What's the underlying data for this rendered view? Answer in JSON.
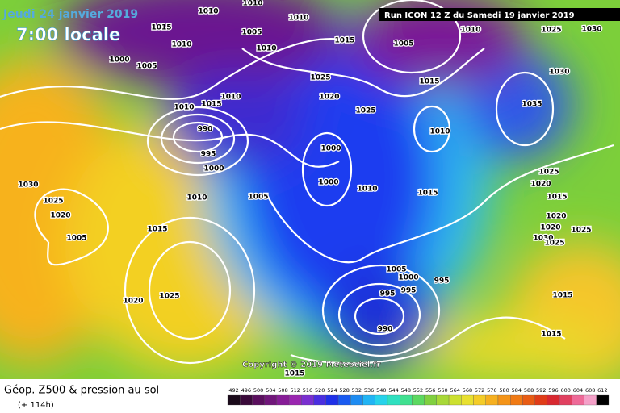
{
  "header": {
    "date": "Jeudi 24 janvier 2019",
    "time": "7:00 locale",
    "run": "Run ICON 12 Z du Samedi 19 janvier 2019"
  },
  "copyright": "Copyright © 2019 Meteociel.fr",
  "footer": {
    "title": "Géop. Z500 & pression au sol",
    "lead": "(+ 114h)"
  },
  "colorbar": {
    "labels": [
      492,
      496,
      500,
      504,
      508,
      512,
      516,
      520,
      524,
      528,
      532,
      536,
      540,
      544,
      548,
      552,
      556,
      560,
      564,
      568,
      572,
      576,
      580,
      584,
      588,
      592,
      596,
      600,
      604,
      608,
      612
    ]
  },
  "isobar_labels": [
    1010,
    1005,
    1015,
    1010,
    1010,
    1010,
    1000,
    1005,
    1010,
    1015,
    1005,
    1010,
    1025,
    1030,
    1025,
    1015,
    1030,
    1020,
    1025,
    1035,
    1010,
    1015,
    1010,
    990,
    1010,
    995,
    1000,
    1000,
    1025,
    1000,
    1010,
    1020,
    1030,
    1010,
    1005,
    1015,
    1015,
    1025,
    1020,
    1020,
    1015,
    1025,
    1020,
    1005,
    1030,
    1025,
    1005,
    1000,
    995,
    995,
    995,
    1020,
    1025,
    990,
    1015,
    1015,
    1015
  ]
}
